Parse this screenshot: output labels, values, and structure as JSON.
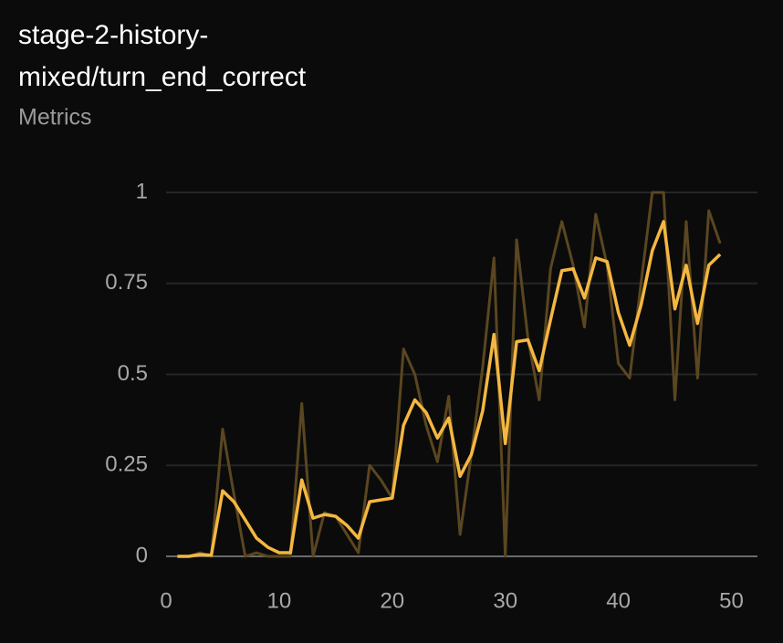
{
  "chart_data": {
    "type": "line",
    "title": [
      "stage-2-history-",
      "mixed/turn_end_correct"
    ],
    "subtitle": "Metrics",
    "x": [
      1,
      2,
      3,
      4,
      5,
      6,
      7,
      8,
      9,
      10,
      11,
      12,
      13,
      14,
      15,
      16,
      17,
      18,
      19,
      20,
      21,
      22,
      23,
      24,
      25,
      26,
      27,
      28,
      29,
      30,
      31,
      32,
      33,
      34,
      35,
      36,
      37,
      38,
      39,
      40,
      41,
      42,
      43,
      44,
      45,
      46,
      47,
      48,
      49
    ],
    "series": [
      {
        "color": "#5a4620",
        "values": [
          0,
          0,
          0.01,
          0,
          0.35,
          0.17,
          0,
          0.01,
          0,
          0,
          0,
          0.42,
          0,
          0.12,
          0.11,
          0.06,
          0.01,
          0.25,
          0.21,
          0.16,
          0.57,
          0.5,
          0.36,
          0.26,
          0.44,
          0.06,
          0.28,
          0.52,
          0.82,
          0,
          0.87,
          0.6,
          0.43,
          0.79,
          0.92,
          0.8,
          0.63,
          0.94,
          0.8,
          0.53,
          0.49,
          0.75,
          1,
          1,
          0.43,
          0.92,
          0.49,
          0.95,
          0.86
        ]
      },
      {
        "color": "#f4b740",
        "values": [
          0,
          0,
          0.005,
          0.003,
          0.18,
          0.15,
          0.1,
          0.05,
          0.025,
          0.01,
          0.01,
          0.21,
          0.105,
          0.115,
          0.11,
          0.085,
          0.05,
          0.15,
          0.155,
          0.16,
          0.36,
          0.43,
          0.395,
          0.325,
          0.38,
          0.22,
          0.28,
          0.4,
          0.61,
          0.31,
          0.59,
          0.595,
          0.51,
          0.65,
          0.785,
          0.79,
          0.71,
          0.82,
          0.81,
          0.67,
          0.58,
          0.69,
          0.84,
          0.92,
          0.68,
          0.8,
          0.64,
          0.8,
          0.83
        ]
      }
    ],
    "xlim": [
      0,
      52.3
    ],
    "xticks": [
      0,
      10,
      20,
      30,
      40,
      50
    ],
    "ylim": [
      0,
      1
    ],
    "yticks": [
      0,
      0.25,
      0.5,
      0.75,
      1
    ],
    "grid": true
  }
}
